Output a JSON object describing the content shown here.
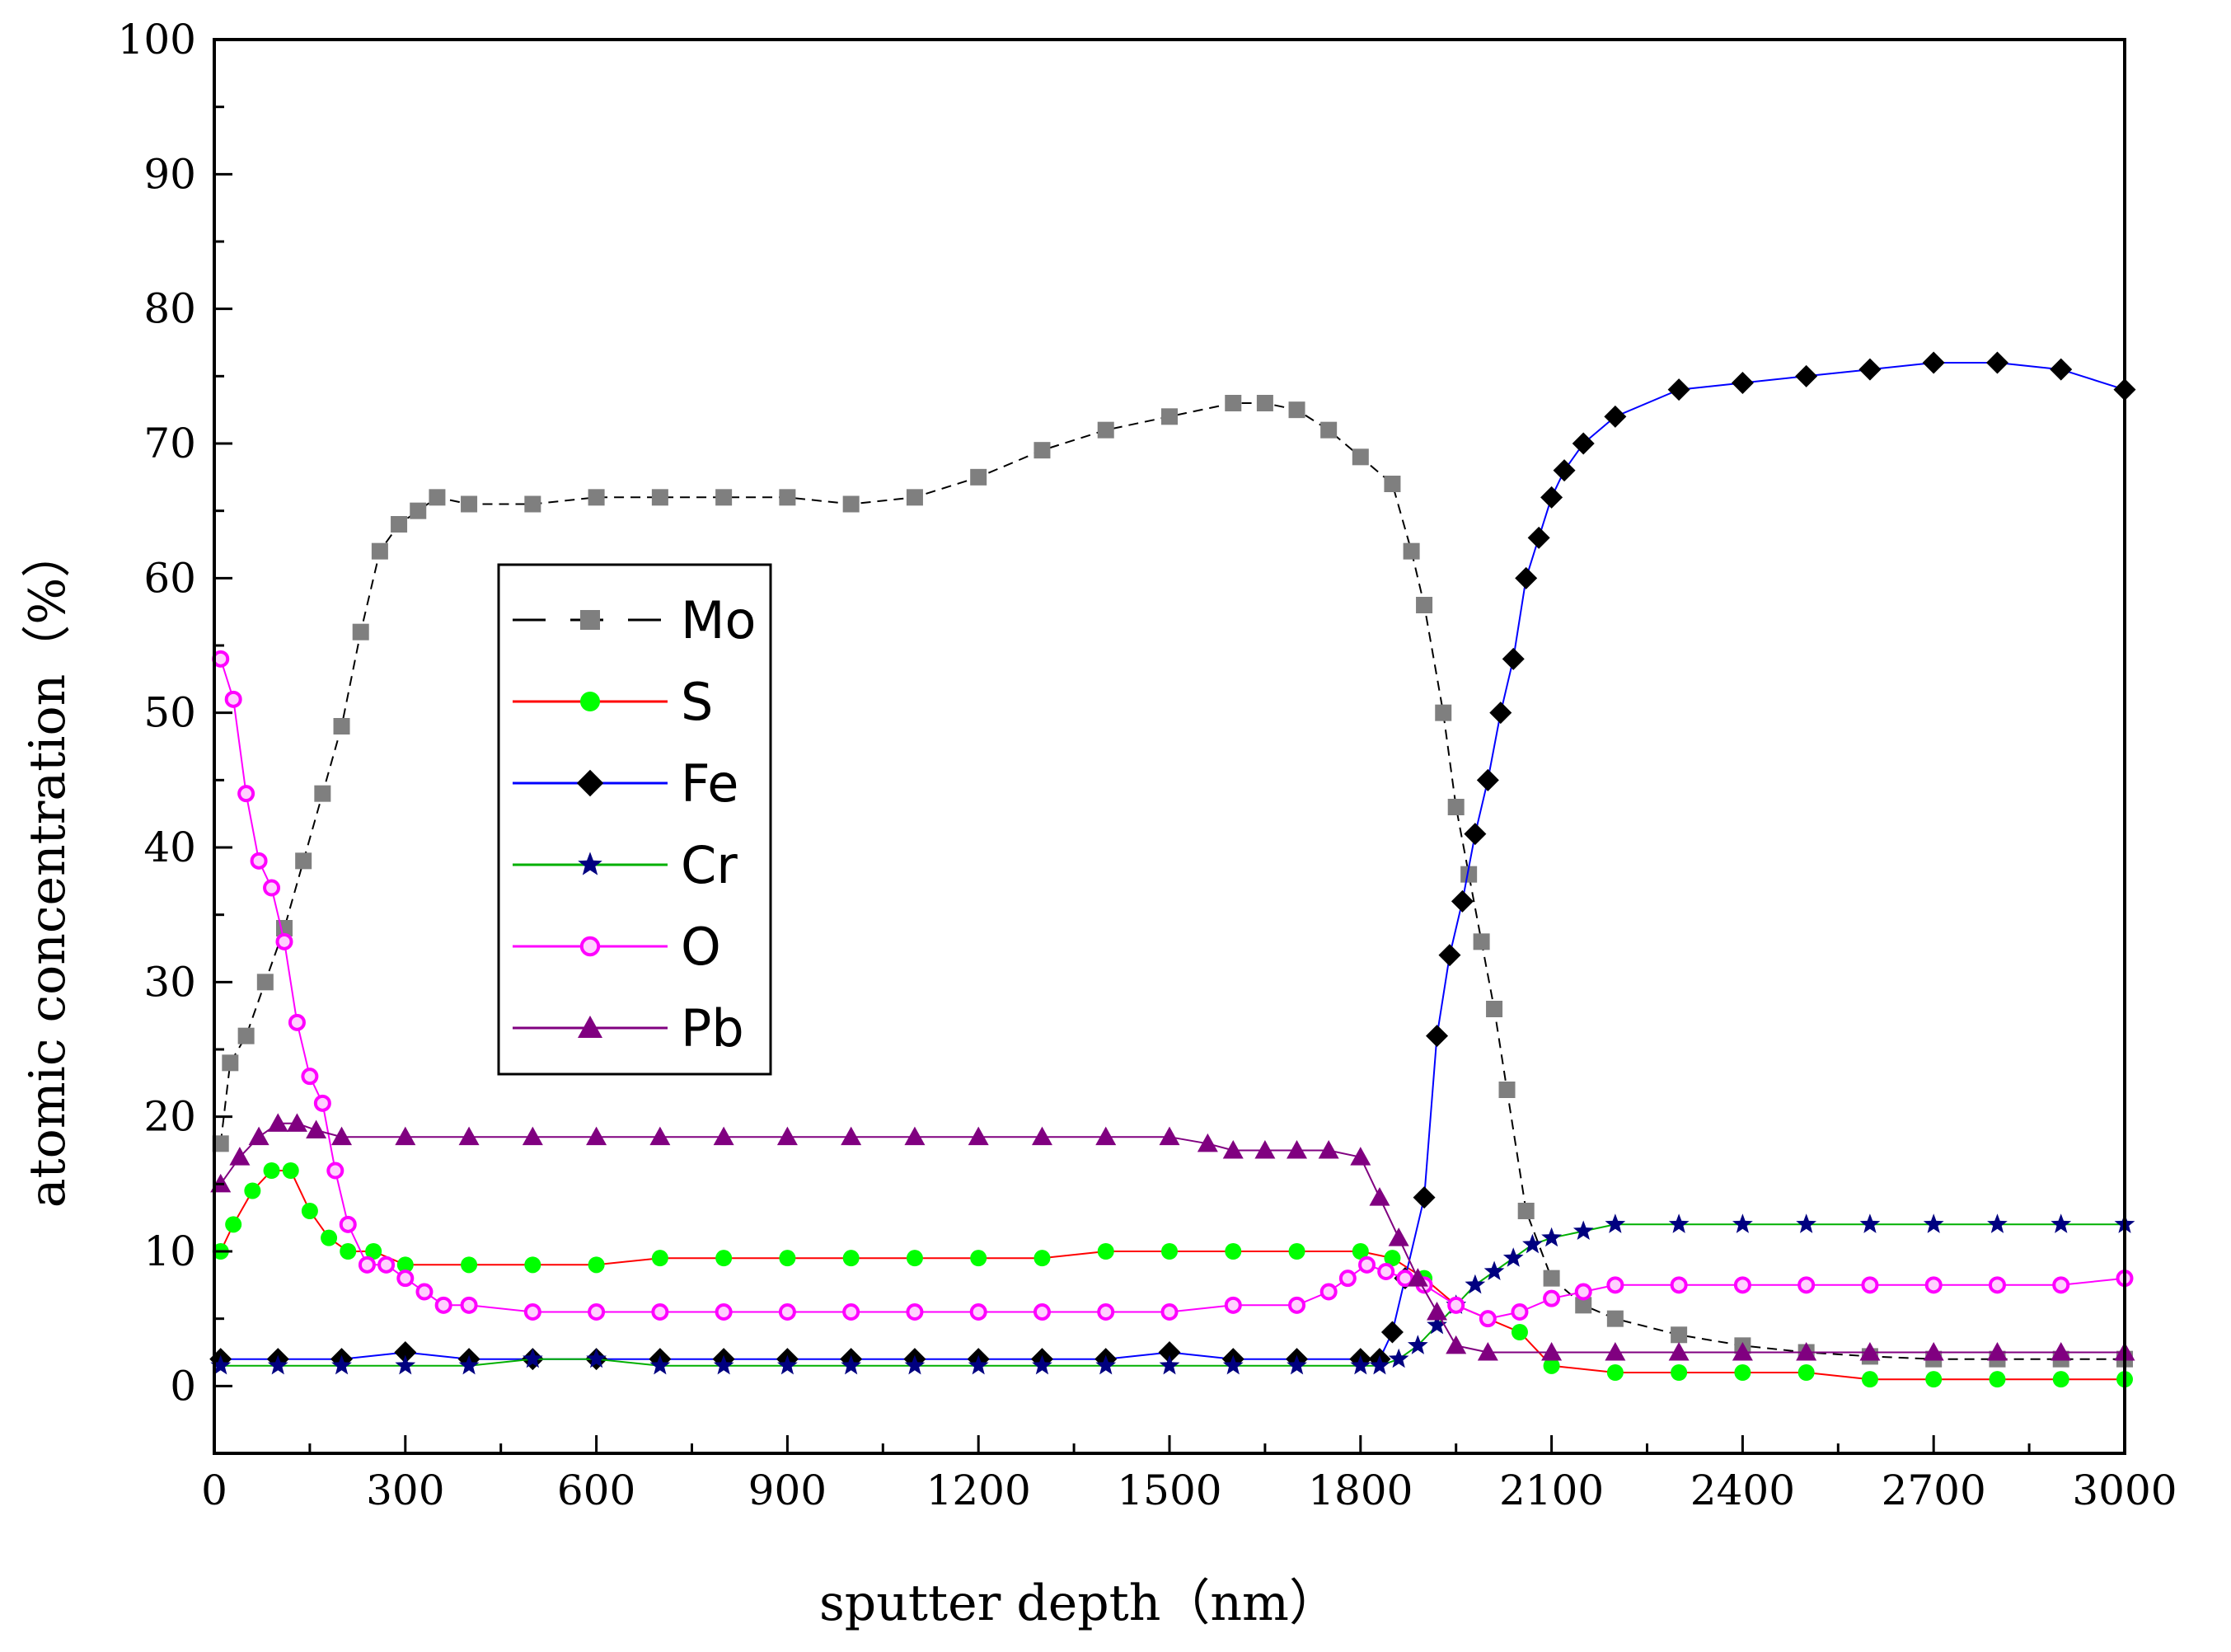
{
  "chart_data": {
    "type": "scatter",
    "title": "",
    "xlabel": "sputter depth（nm）",
    "ylabel": "atomic concentration（%）",
    "xlim": [
      0,
      3000
    ],
    "ylim": [
      -5,
      100
    ],
    "xticks": [
      0,
      300,
      600,
      900,
      1200,
      1500,
      1800,
      2100,
      2400,
      2700,
      3000
    ],
    "yticks": [
      0,
      10,
      20,
      30,
      40,
      50,
      60,
      70,
      80,
      90,
      100
    ],
    "grid": false,
    "legend_position": "upper-left-center",
    "series": [
      {
        "name": "Mo",
        "marker": "square",
        "marker_color": "#7f7f7f",
        "line_color": "#000000",
        "line_style": "dashed",
        "x": [
          10,
          25,
          50,
          80,
          110,
          140,
          170,
          200,
          230,
          260,
          290,
          320,
          350,
          400,
          500,
          600,
          700,
          800,
          900,
          1000,
          1100,
          1200,
          1300,
          1400,
          1500,
          1600,
          1650,
          1700,
          1750,
          1800,
          1850,
          1880,
          1900,
          1930,
          1950,
          1970,
          1990,
          2010,
          2030,
          2060,
          2100,
          2150,
          2200,
          2300,
          2400,
          2500,
          2600,
          2700,
          2800,
          2900,
          3000
        ],
        "y": [
          18,
          24,
          26,
          30,
          34,
          39,
          44,
          49,
          56,
          62,
          64,
          65,
          66,
          65.5,
          65.5,
          66,
          66,
          66,
          66,
          65.5,
          66,
          67.5,
          69.5,
          71,
          72,
          73,
          73,
          72.5,
          71,
          69,
          67,
          62,
          58,
          50,
          43,
          38,
          33,
          28,
          22,
          13,
          8,
          6,
          5,
          3.8,
          3,
          2.5,
          2.2,
          2,
          2,
          2,
          2
        ]
      },
      {
        "name": "S",
        "marker": "circle",
        "marker_color": "#00ff00",
        "line_color": "#ff0000",
        "line_style": "solid",
        "x": [
          10,
          30,
          60,
          90,
          120,
          150,
          180,
          210,
          250,
          300,
          400,
          500,
          600,
          700,
          800,
          900,
          1000,
          1100,
          1200,
          1300,
          1400,
          1500,
          1600,
          1700,
          1800,
          1850,
          1900,
          1950,
          2000,
          2050,
          2100,
          2200,
          2300,
          2400,
          2500,
          2600,
          2700,
          2800,
          2900,
          3000
        ],
        "y": [
          10,
          12,
          14.5,
          16,
          16,
          13,
          11,
          10,
          10,
          9,
          9,
          9,
          9,
          9.5,
          9.5,
          9.5,
          9.5,
          9.5,
          9.5,
          9.5,
          10,
          10,
          10,
          10,
          10,
          9.5,
          8,
          6,
          5,
          4,
          1.5,
          1,
          1,
          1,
          1,
          0.5,
          0.5,
          0.5,
          0.5,
          0.5
        ]
      },
      {
        "name": "Fe",
        "marker": "diamond",
        "marker_color": "#000000",
        "line_color": "#0000ff",
        "line_style": "solid",
        "x": [
          10,
          100,
          200,
          300,
          400,
          500,
          600,
          700,
          800,
          900,
          1000,
          1100,
          1200,
          1300,
          1400,
          1500,
          1600,
          1700,
          1800,
          1830,
          1850,
          1870,
          1900,
          1920,
          1940,
          1960,
          1980,
          2000,
          2020,
          2040,
          2060,
          2080,
          2100,
          2120,
          2150,
          2200,
          2300,
          2400,
          2500,
          2600,
          2700,
          2800,
          2900,
          3000
        ],
        "y": [
          2,
          2,
          2,
          2.5,
          2,
          2,
          2,
          2,
          2,
          2,
          2,
          2,
          2,
          2,
          2,
          2.5,
          2,
          2,
          2,
          2,
          4,
          8,
          14,
          26,
          32,
          36,
          41,
          45,
          50,
          54,
          60,
          63,
          66,
          68,
          70,
          72,
          74,
          74.5,
          75,
          75.5,
          76,
          76,
          75.5,
          74
        ]
      },
      {
        "name": "Cr",
        "marker": "star",
        "marker_color": "#000080",
        "line_color": "#00b000",
        "line_style": "solid",
        "x": [
          10,
          100,
          200,
          300,
          400,
          500,
          600,
          700,
          800,
          900,
          1000,
          1100,
          1200,
          1300,
          1400,
          1500,
          1600,
          1700,
          1800,
          1830,
          1860,
          1890,
          1920,
          1950,
          1980,
          2010,
          2040,
          2070,
          2100,
          2150,
          2200,
          2300,
          2400,
          2500,
          2600,
          2700,
          2800,
          2900,
          3000
        ],
        "y": [
          1.5,
          1.5,
          1.5,
          1.5,
          1.5,
          2,
          2,
          1.5,
          1.5,
          1.5,
          1.5,
          1.5,
          1.5,
          1.5,
          1.5,
          1.5,
          1.5,
          1.5,
          1.5,
          1.5,
          2,
          3,
          4.5,
          6,
          7.5,
          8.5,
          9.5,
          10.5,
          11,
          11.5,
          12,
          12,
          12,
          12,
          12,
          12,
          12,
          12,
          12
        ]
      },
      {
        "name": "O",
        "marker": "open-circle",
        "marker_color": "#ff00ff",
        "line_color": "#ff00ff",
        "line_style": "solid",
        "x": [
          10,
          30,
          50,
          70,
          90,
          110,
          130,
          150,
          170,
          190,
          210,
          240,
          270,
          300,
          330,
          360,
          400,
          500,
          600,
          700,
          800,
          900,
          1000,
          1100,
          1200,
          1300,
          1400,
          1500,
          1600,
          1700,
          1750,
          1780,
          1810,
          1840,
          1870,
          1900,
          1950,
          2000,
          2050,
          2100,
          2150,
          2200,
          2300,
          2400,
          2500,
          2600,
          2700,
          2800,
          2900,
          3000
        ],
        "y": [
          54,
          51,
          44,
          39,
          37,
          33,
          27,
          23,
          21,
          16,
          12,
          9,
          9,
          8,
          7,
          6,
          6,
          5.5,
          5.5,
          5.5,
          5.5,
          5.5,
          5.5,
          5.5,
          5.5,
          5.5,
          5.5,
          5.5,
          6,
          6,
          7,
          8,
          9,
          8.5,
          8,
          7.5,
          6,
          5,
          5.5,
          6.5,
          7,
          7.5,
          7.5,
          7.5,
          7.5,
          7.5,
          7.5,
          7.5,
          7.5,
          8
        ]
      },
      {
        "name": "Pb",
        "marker": "triangle",
        "marker_color": "#800080",
        "line_color": "#800080",
        "line_style": "solid",
        "x": [
          10,
          40,
          70,
          100,
          130,
          160,
          200,
          300,
          400,
          500,
          600,
          700,
          800,
          900,
          1000,
          1100,
          1200,
          1300,
          1400,
          1500,
          1560,
          1600,
          1650,
          1700,
          1750,
          1800,
          1830,
          1860,
          1890,
          1920,
          1950,
          2000,
          2100,
          2200,
          2300,
          2400,
          2500,
          2600,
          2700,
          2800,
          2900,
          3000
        ],
        "y": [
          15,
          17,
          18.5,
          19.5,
          19.5,
          19,
          18.5,
          18.5,
          18.5,
          18.5,
          18.5,
          18.5,
          18.5,
          18.5,
          18.5,
          18.5,
          18.5,
          18.5,
          18.5,
          18.5,
          18,
          17.5,
          17.5,
          17.5,
          17.5,
          17,
          14,
          11,
          8,
          5.5,
          3,
          2.5,
          2.5,
          2.5,
          2.5,
          2.5,
          2.5,
          2.5,
          2.5,
          2.5,
          2.5,
          2.5
        ]
      }
    ]
  }
}
